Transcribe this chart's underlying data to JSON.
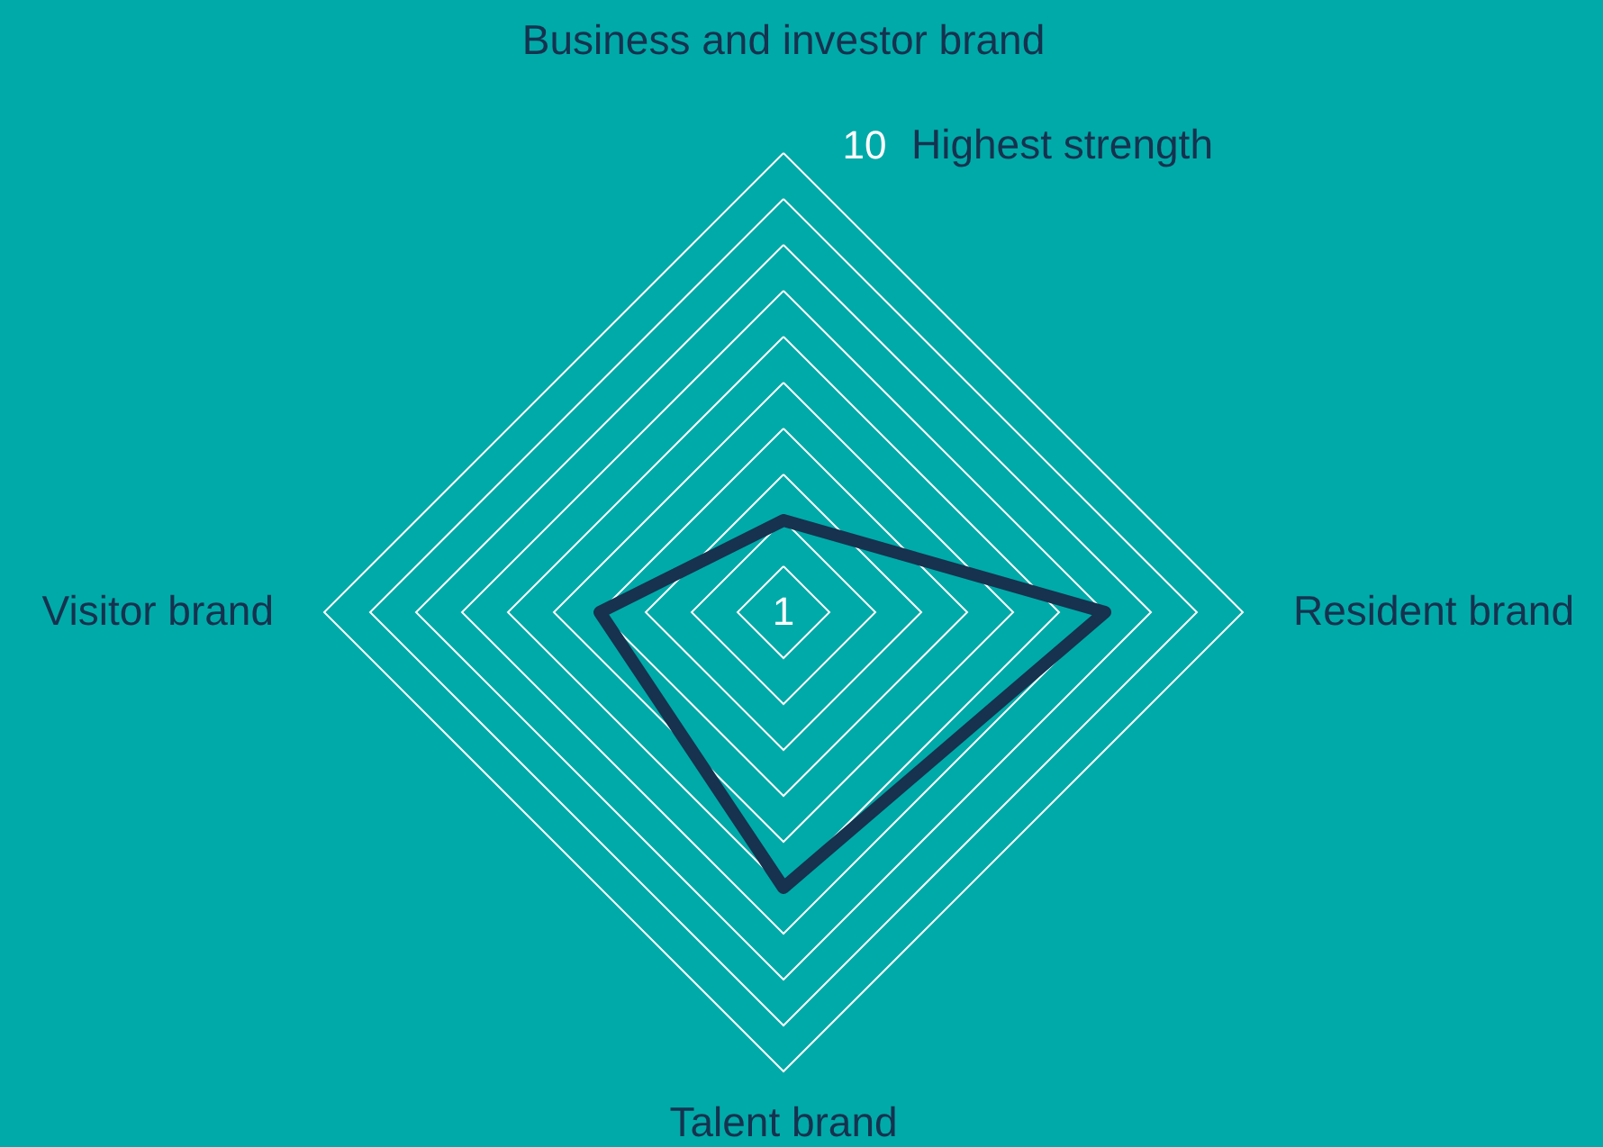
{
  "chart_data": {
    "type": "radar",
    "categories": [
      "Business and investor brand",
      "Resident brand",
      "Talent brand",
      "Visitor brand"
    ],
    "series": [
      {
        "color": "#16324f",
        "values": [
          2,
          7,
          6,
          4
        ]
      }
    ],
    "ylim": [
      0,
      10
    ],
    "yticks": [
      1,
      10
    ],
    "grid": true,
    "annotations": [
      "Highest strength"
    ]
  }
}
